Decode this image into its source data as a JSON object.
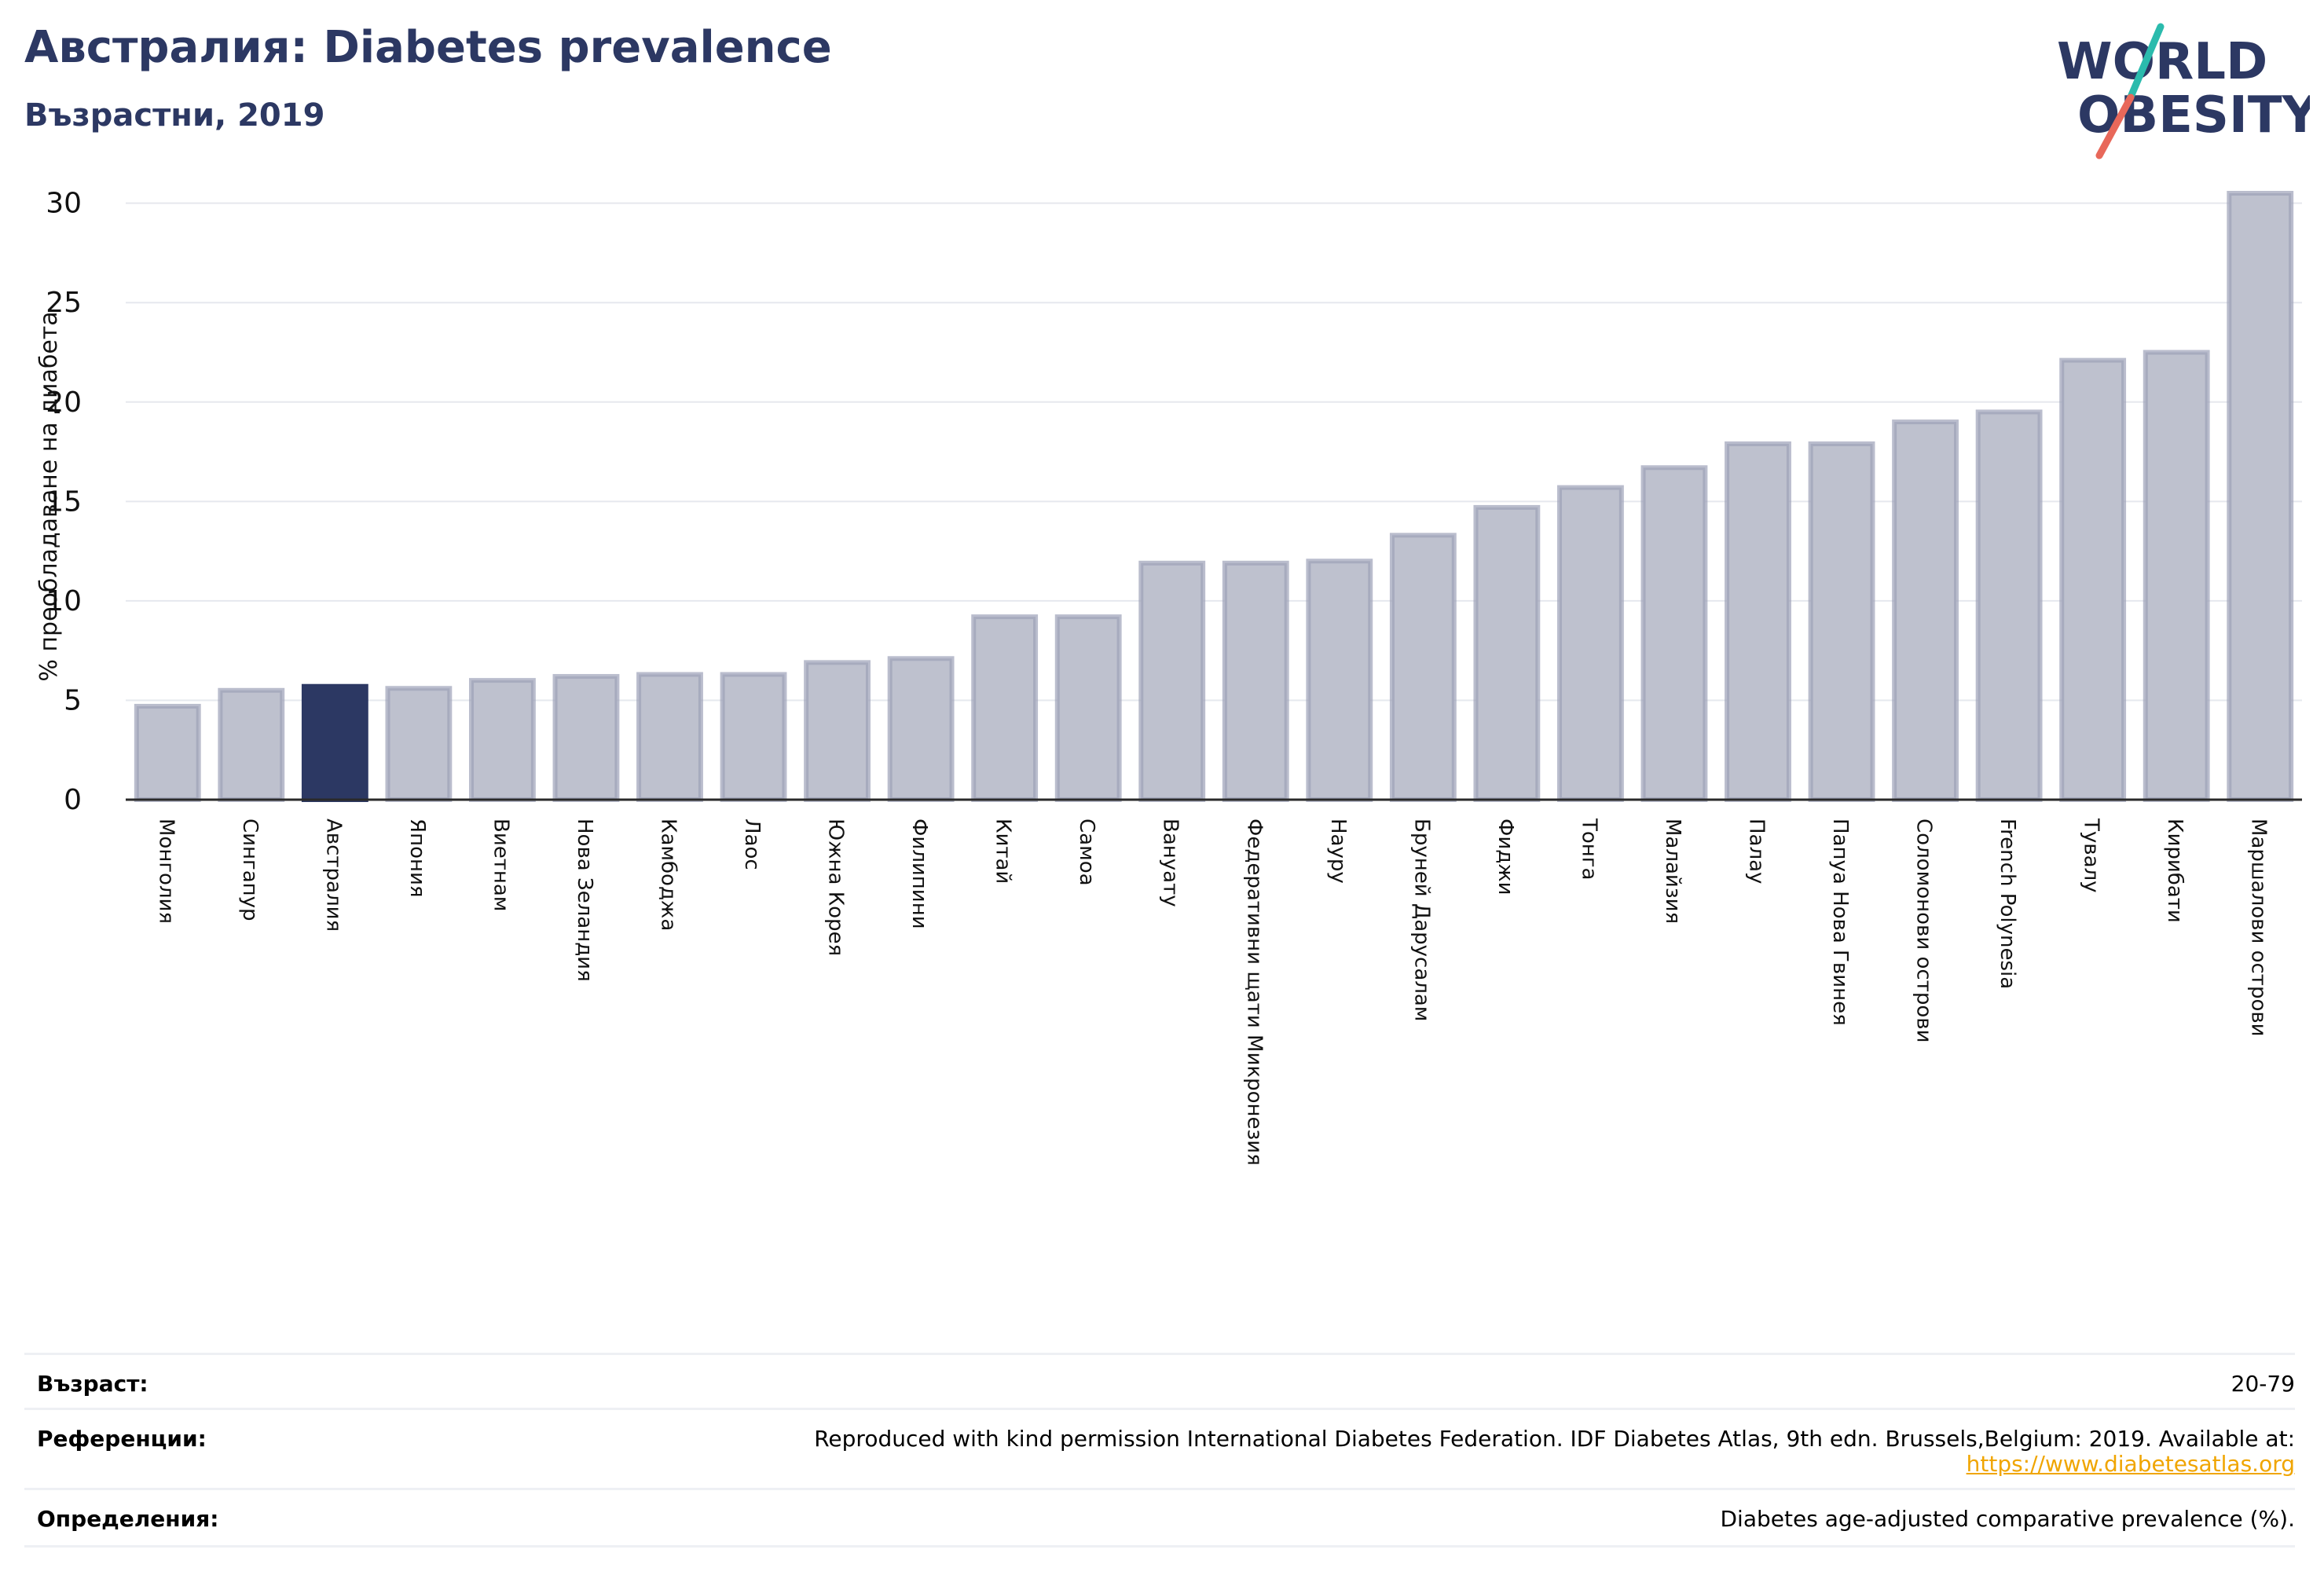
{
  "header": {
    "title": "Австралия: Diabetes prevalence",
    "subtitle": "Възрастни, 2019"
  },
  "logo": {
    "line1": "WORLD",
    "line2": "OBESITY",
    "accent_teal": "#2bbbad",
    "accent_red": "#e8685a",
    "text_color": "#2c3863"
  },
  "chart_data": {
    "type": "bar",
    "ylabel": "% преобладаване на диабета",
    "ylim": [
      0,
      30.5
    ],
    "yticks": [
      0,
      5,
      10,
      15,
      20,
      25,
      30
    ],
    "grid": true,
    "highlight": "Австралия",
    "colors": {
      "bar": "#bec1ce",
      "bar_edge": "#9ca1b8",
      "highlight": "#2c3863"
    },
    "categories": [
      "Монголия",
      "Сингапур",
      "Австралия",
      "Япония",
      "Виетнам",
      "Нова Зеландия",
      "Камбоджа",
      "Лаос",
      "Южна Корея",
      "Филипини",
      "Китай",
      "Самоа",
      "Вануату",
      "Федеративни щати Микронезия",
      "Науру",
      "Бруней Дарусалам",
      "Фиджи",
      "Тонга",
      "Малайзия",
      "Палау",
      "Папуа Нова Гвинея",
      "Соломонови острови",
      "French Polynesia",
      "Тувалу",
      "Кирибати",
      "Маршалови острови"
    ],
    "values": [
      4.7,
      5.5,
      5.7,
      5.6,
      6.0,
      6.2,
      6.3,
      6.3,
      6.9,
      7.1,
      9.2,
      9.2,
      11.9,
      11.9,
      12.0,
      13.3,
      14.7,
      15.7,
      16.7,
      17.9,
      17.9,
      19.0,
      19.5,
      22.1,
      22.5,
      30.5
    ]
  },
  "meta": {
    "age_label": "Възраст:",
    "age_value": "20-79",
    "references_label": "Референции:",
    "references_text": "Reproduced with kind permission International Diabetes Federation. IDF Diabetes Atlas, 9th edn. Brussels,Belgium: 2019. Available at:",
    "references_link": "https://www.diabetesatlas.org",
    "definitions_label": "Определения:",
    "definitions_value": "Diabetes age-adjusted comparative prevalence (%)."
  }
}
